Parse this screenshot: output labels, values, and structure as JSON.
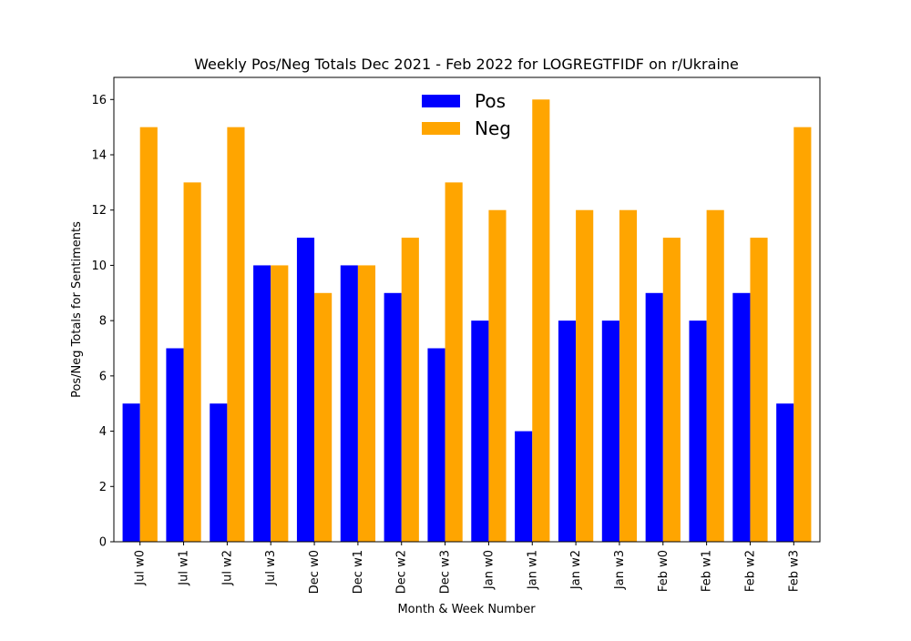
{
  "chart_data": {
    "type": "bar",
    "title": "Weekly Pos/Neg Totals Dec 2021 - Feb 2022 for LOGREGTFIDF on r/Ukraine",
    "xlabel": "Month & Week Number",
    "ylabel": "Pos/Neg Totals for Sentiments",
    "ylim": [
      0,
      16.8
    ],
    "yticks": [
      0,
      2,
      4,
      6,
      8,
      10,
      12,
      14,
      16
    ],
    "categories": [
      "Jul w0",
      "Jul w1",
      "Jul w2",
      "Jul w3",
      "Dec w0",
      "Dec w1",
      "Dec w2",
      "Dec w3",
      "Jan w0",
      "Jan w1",
      "Jan w2",
      "Jan w3",
      "Feb w0",
      "Feb w1",
      "Feb w2",
      "Feb w3"
    ],
    "series": [
      {
        "name": "Pos",
        "color": "#0000ff",
        "values": [
          5,
          7,
          5,
          10,
          11,
          10,
          9,
          7,
          8,
          4,
          8,
          8,
          9,
          8,
          9,
          5
        ]
      },
      {
        "name": "Neg",
        "color": "#ffa500",
        "values": [
          15,
          13,
          15,
          10,
          9,
          10,
          11,
          13,
          12,
          16,
          12,
          12,
          11,
          12,
          11,
          15
        ]
      }
    ],
    "legend_position": "upper center",
    "grid": false
  }
}
